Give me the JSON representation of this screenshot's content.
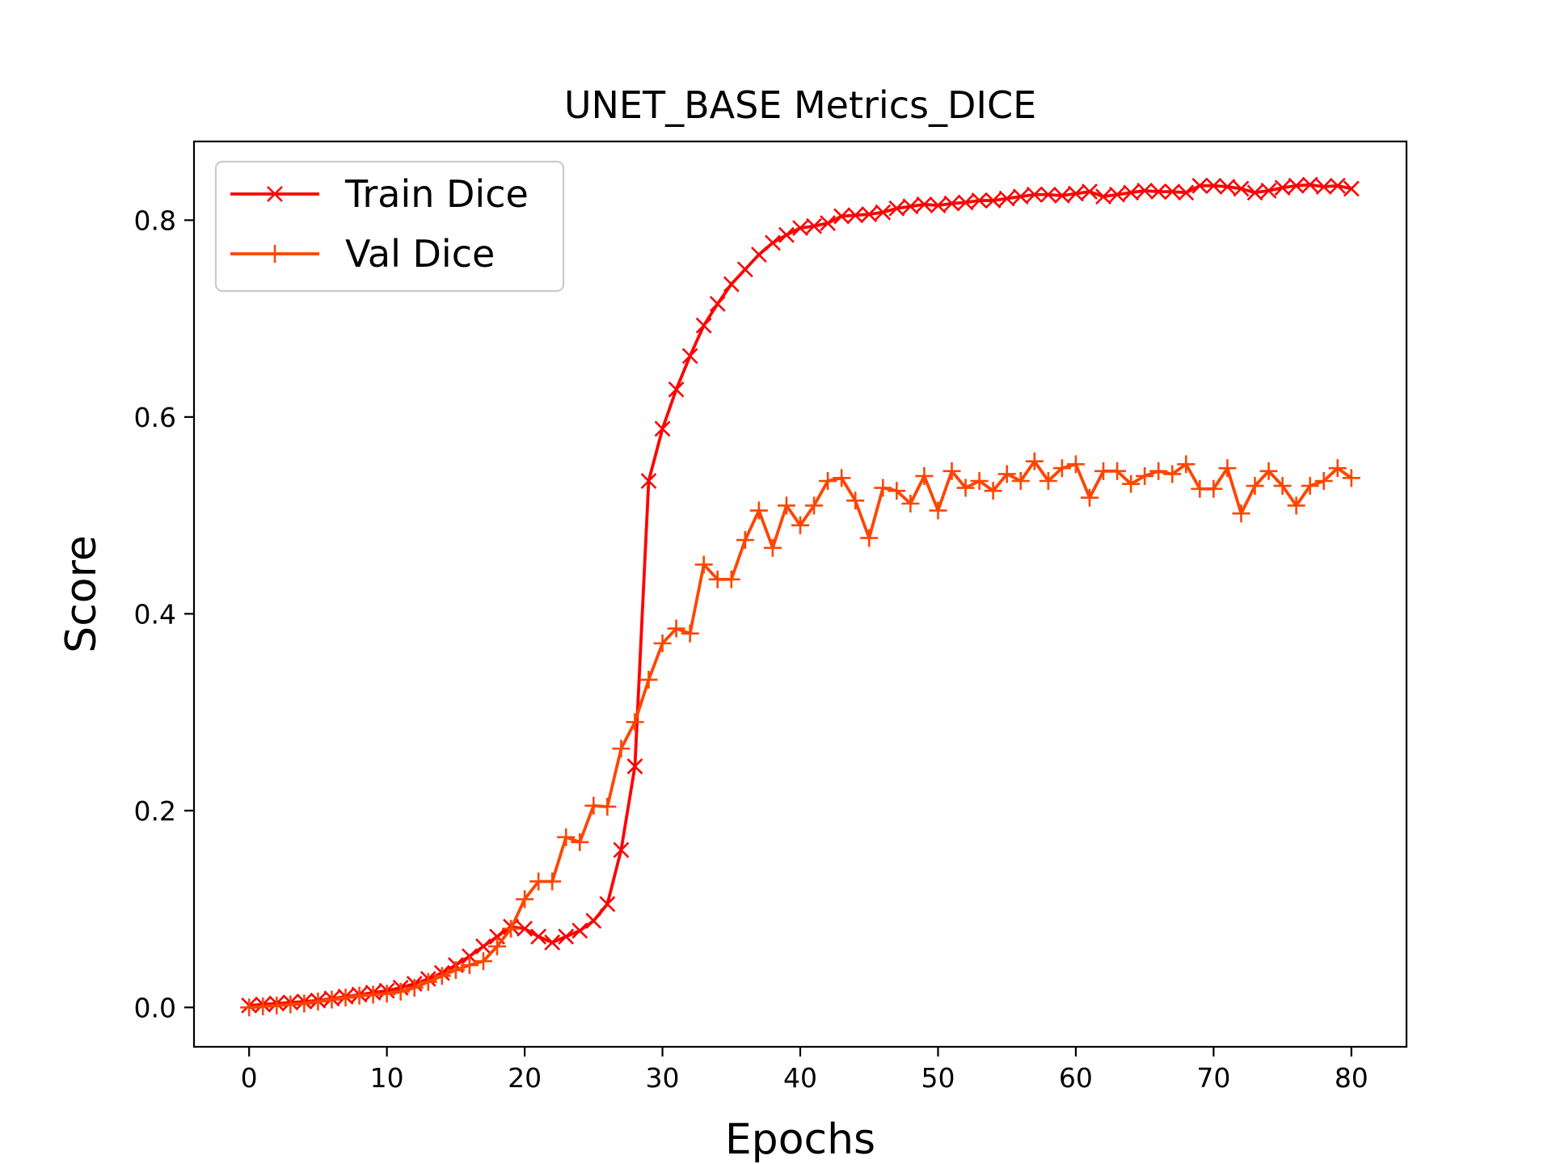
{
  "chart_data": {
    "type": "line",
    "title": "UNET_BASE Metrics_DICE",
    "xlabel": "Epochs",
    "ylabel": "Score",
    "xlim": [
      -4,
      84
    ],
    "ylim": [
      -0.04,
      0.88
    ],
    "xticks": [
      0,
      10,
      20,
      30,
      40,
      50,
      60,
      70,
      80
    ],
    "xtick_labels": [
      "0",
      "10",
      "20",
      "30",
      "40",
      "50",
      "60",
      "70",
      "80"
    ],
    "yticks": [
      0.0,
      0.2,
      0.4,
      0.6,
      0.8
    ],
    "ytick_labels": [
      "0.0",
      "0.2",
      "0.4",
      "0.6",
      "0.8"
    ],
    "grid": false,
    "legend_position": "upper-left",
    "series": [
      {
        "name": "Train Dice",
        "color": "#ff0000",
        "marker": "x",
        "values": [
          0.002,
          0.003,
          0.004,
          0.005,
          0.006,
          0.007,
          0.009,
          0.011,
          0.013,
          0.015,
          0.017,
          0.02,
          0.024,
          0.029,
          0.035,
          0.043,
          0.052,
          0.062,
          0.072,
          0.082,
          0.08,
          0.072,
          0.066,
          0.072,
          0.078,
          0.088,
          0.105,
          0.16,
          0.245,
          0.535,
          0.588,
          0.628,
          0.662,
          0.693,
          0.715,
          0.735,
          0.75,
          0.765,
          0.777,
          0.785,
          0.792,
          0.794,
          0.797,
          0.804,
          0.805,
          0.806,
          0.808,
          0.812,
          0.814,
          0.816,
          0.815,
          0.817,
          0.818,
          0.82,
          0.82,
          0.822,
          0.824,
          0.826,
          0.826,
          0.825,
          0.827,
          0.829,
          0.824,
          0.826,
          0.828,
          0.83,
          0.829,
          0.829,
          0.828,
          0.835,
          0.835,
          0.834,
          0.832,
          0.828,
          0.83,
          0.833,
          0.835,
          0.836,
          0.834,
          0.835,
          0.832
        ]
      },
      {
        "name": "Val Dice",
        "color": "#ff4500",
        "marker": "+",
        "values": [
          0.0,
          0.001,
          0.002,
          0.003,
          0.004,
          0.006,
          0.008,
          0.01,
          0.012,
          0.013,
          0.014,
          0.016,
          0.02,
          0.026,
          0.032,
          0.038,
          0.043,
          0.047,
          0.062,
          0.08,
          0.11,
          0.128,
          0.128,
          0.173,
          0.168,
          0.205,
          0.204,
          0.263,
          0.29,
          0.333,
          0.37,
          0.385,
          0.38,
          0.45,
          0.435,
          0.435,
          0.475,
          0.505,
          0.467,
          0.51,
          0.49,
          0.51,
          0.535,
          0.538,
          0.515,
          0.477,
          0.528,
          0.525,
          0.512,
          0.54,
          0.505,
          0.545,
          0.528,
          0.535,
          0.525,
          0.542,
          0.535,
          0.555,
          0.535,
          0.548,
          0.552,
          0.518,
          0.545,
          0.545,
          0.532,
          0.54,
          0.545,
          0.542,
          0.552,
          0.527,
          0.527,
          0.548,
          0.502,
          0.53,
          0.545,
          0.53,
          0.51,
          0.53,
          0.535,
          0.548,
          0.538
        ]
      }
    ]
  }
}
